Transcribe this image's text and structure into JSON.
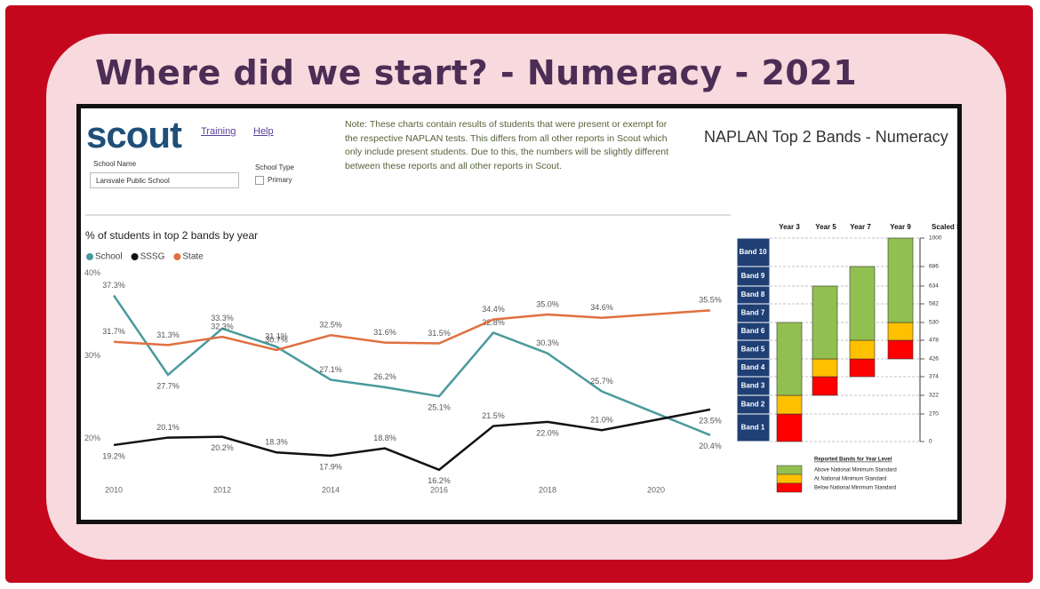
{
  "slide_title": "Where did we start? - Numeracy - 2021",
  "logo": "scout",
  "links": [
    "Training",
    "Help"
  ],
  "filters": {
    "school_name_label": "School Name",
    "school_name_value": "Lansvale Public School",
    "school_type_label": "School Type",
    "school_type_option": "Primary"
  },
  "note": "Note: These charts contain results of students that were present or exempt for the respective NAPLAN tests. This differs from all other reports in Scout which only include present students. Due to this, the numbers will be slightly different between these reports and all other reports in Scout.",
  "panel_title": "NAPLAN Top 2 Bands - Numeracy",
  "chart_data": {
    "type": "line",
    "title": "% of students in top 2 bands by year",
    "x": [
      2010,
      2011,
      2012,
      2013,
      2014,
      2015,
      2016,
      2017,
      2018,
      2019,
      2021
    ],
    "xlim": [
      2010,
      2021
    ],
    "xticks": [
      2010,
      2012,
      2014,
      2016,
      2018,
      2020
    ],
    "ylim": [
      15,
      40
    ],
    "yticks": [
      {
        "value": 40,
        "label": "40%"
      },
      {
        "value": 30,
        "label": "30%"
      },
      {
        "value": 20,
        "label": "20%"
      }
    ],
    "series": [
      {
        "name": "School",
        "color": "#4a9a9c",
        "values": [
          37.3,
          27.7,
          33.3,
          31.1,
          27.1,
          26.2,
          25.1,
          32.8,
          30.3,
          25.7,
          20.4
        ],
        "value_labels": [
          "37.3%",
          "27.7%",
          "33.3%",
          "31.1%",
          "27.1%",
          "26.2%",
          "25.1%",
          "32.8%",
          "30.3%",
          "25.7%",
          "20.4%"
        ]
      },
      {
        "name": "SSSG",
        "color": "#111111",
        "values": [
          19.2,
          20.1,
          20.2,
          18.3,
          17.9,
          18.8,
          16.2,
          21.5,
          22.0,
          21.0,
          23.5
        ],
        "value_labels": [
          "19.2%",
          "20.1%",
          "20.2%",
          "18.3%",
          "17.9%",
          "18.8%",
          "16.2%",
          "21.5%",
          "22.0%",
          "21.0%",
          "23.5%"
        ]
      },
      {
        "name": "State",
        "color": "#e07040",
        "values": [
          31.7,
          31.3,
          32.3,
          30.7,
          32.5,
          31.6,
          31.5,
          34.4,
          35.0,
          34.6,
          35.5
        ],
        "value_labels": [
          "31.7%",
          "31.3%",
          "32.3%",
          "30.7%",
          "32.5%",
          "31.6%",
          "31.5%",
          "34.4%",
          "35.0%",
          "34.6%",
          "35.5%"
        ]
      }
    ]
  },
  "bands": {
    "columns": [
      "Year 3",
      "Year 5",
      "Year 7",
      "Year 9",
      "Scaled S"
    ],
    "band_labels": [
      "Band 1",
      "Band 2",
      "Band 3",
      "Band 4",
      "Band 5",
      "Band 6",
      "Band 7",
      "Band 8",
      "Band 9",
      "Band 10"
    ],
    "scale": [
      0,
      270,
      322,
      374,
      426,
      478,
      530,
      582,
      634,
      686,
      1000
    ],
    "legend_title": "Reported Bands for Year Level",
    "legend": [
      "Above National Minimum Standard",
      "At National Minimum Standard",
      "Below National Minimum Standard"
    ]
  }
}
